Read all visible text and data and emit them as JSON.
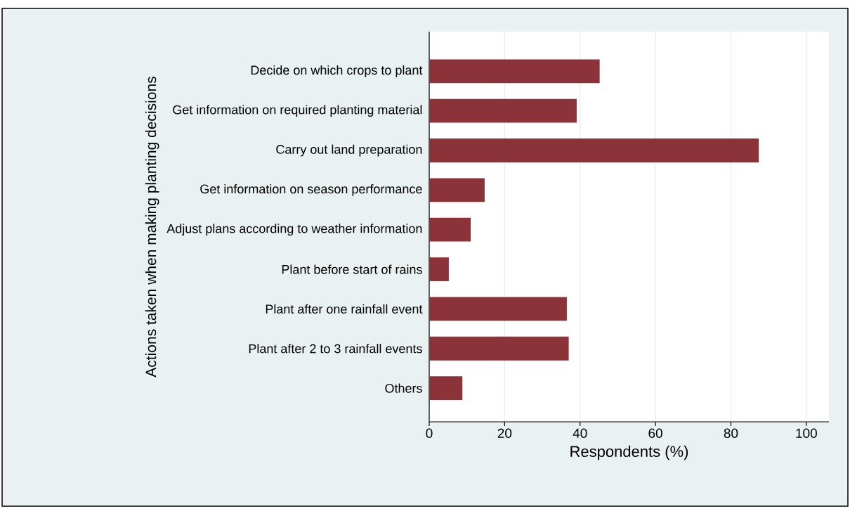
{
  "chart_data": {
    "type": "bar",
    "orientation": "horizontal",
    "ylabel": "Actions taken when making planting decisions",
    "xlabel": "Respondents (%)",
    "categories": [
      "Decide on which crops to plant",
      "Get information on required planting material",
      "Carry out land preparation",
      "Get information on season performance",
      "Adjust plans according to weather information",
      "Plant before start of rains",
      "Plant after one rainfall event",
      "Plant after 2 to 3 rainfall events",
      "Others"
    ],
    "values": [
      45.2,
      39.1,
      87.4,
      14.7,
      11.0,
      5.2,
      36.5,
      37.0,
      8.8
    ],
    "color": "#8c333a",
    "xlim": [
      0,
      106
    ],
    "xticks": [
      0,
      20,
      40,
      60,
      80,
      100
    ],
    "grid": "x"
  }
}
